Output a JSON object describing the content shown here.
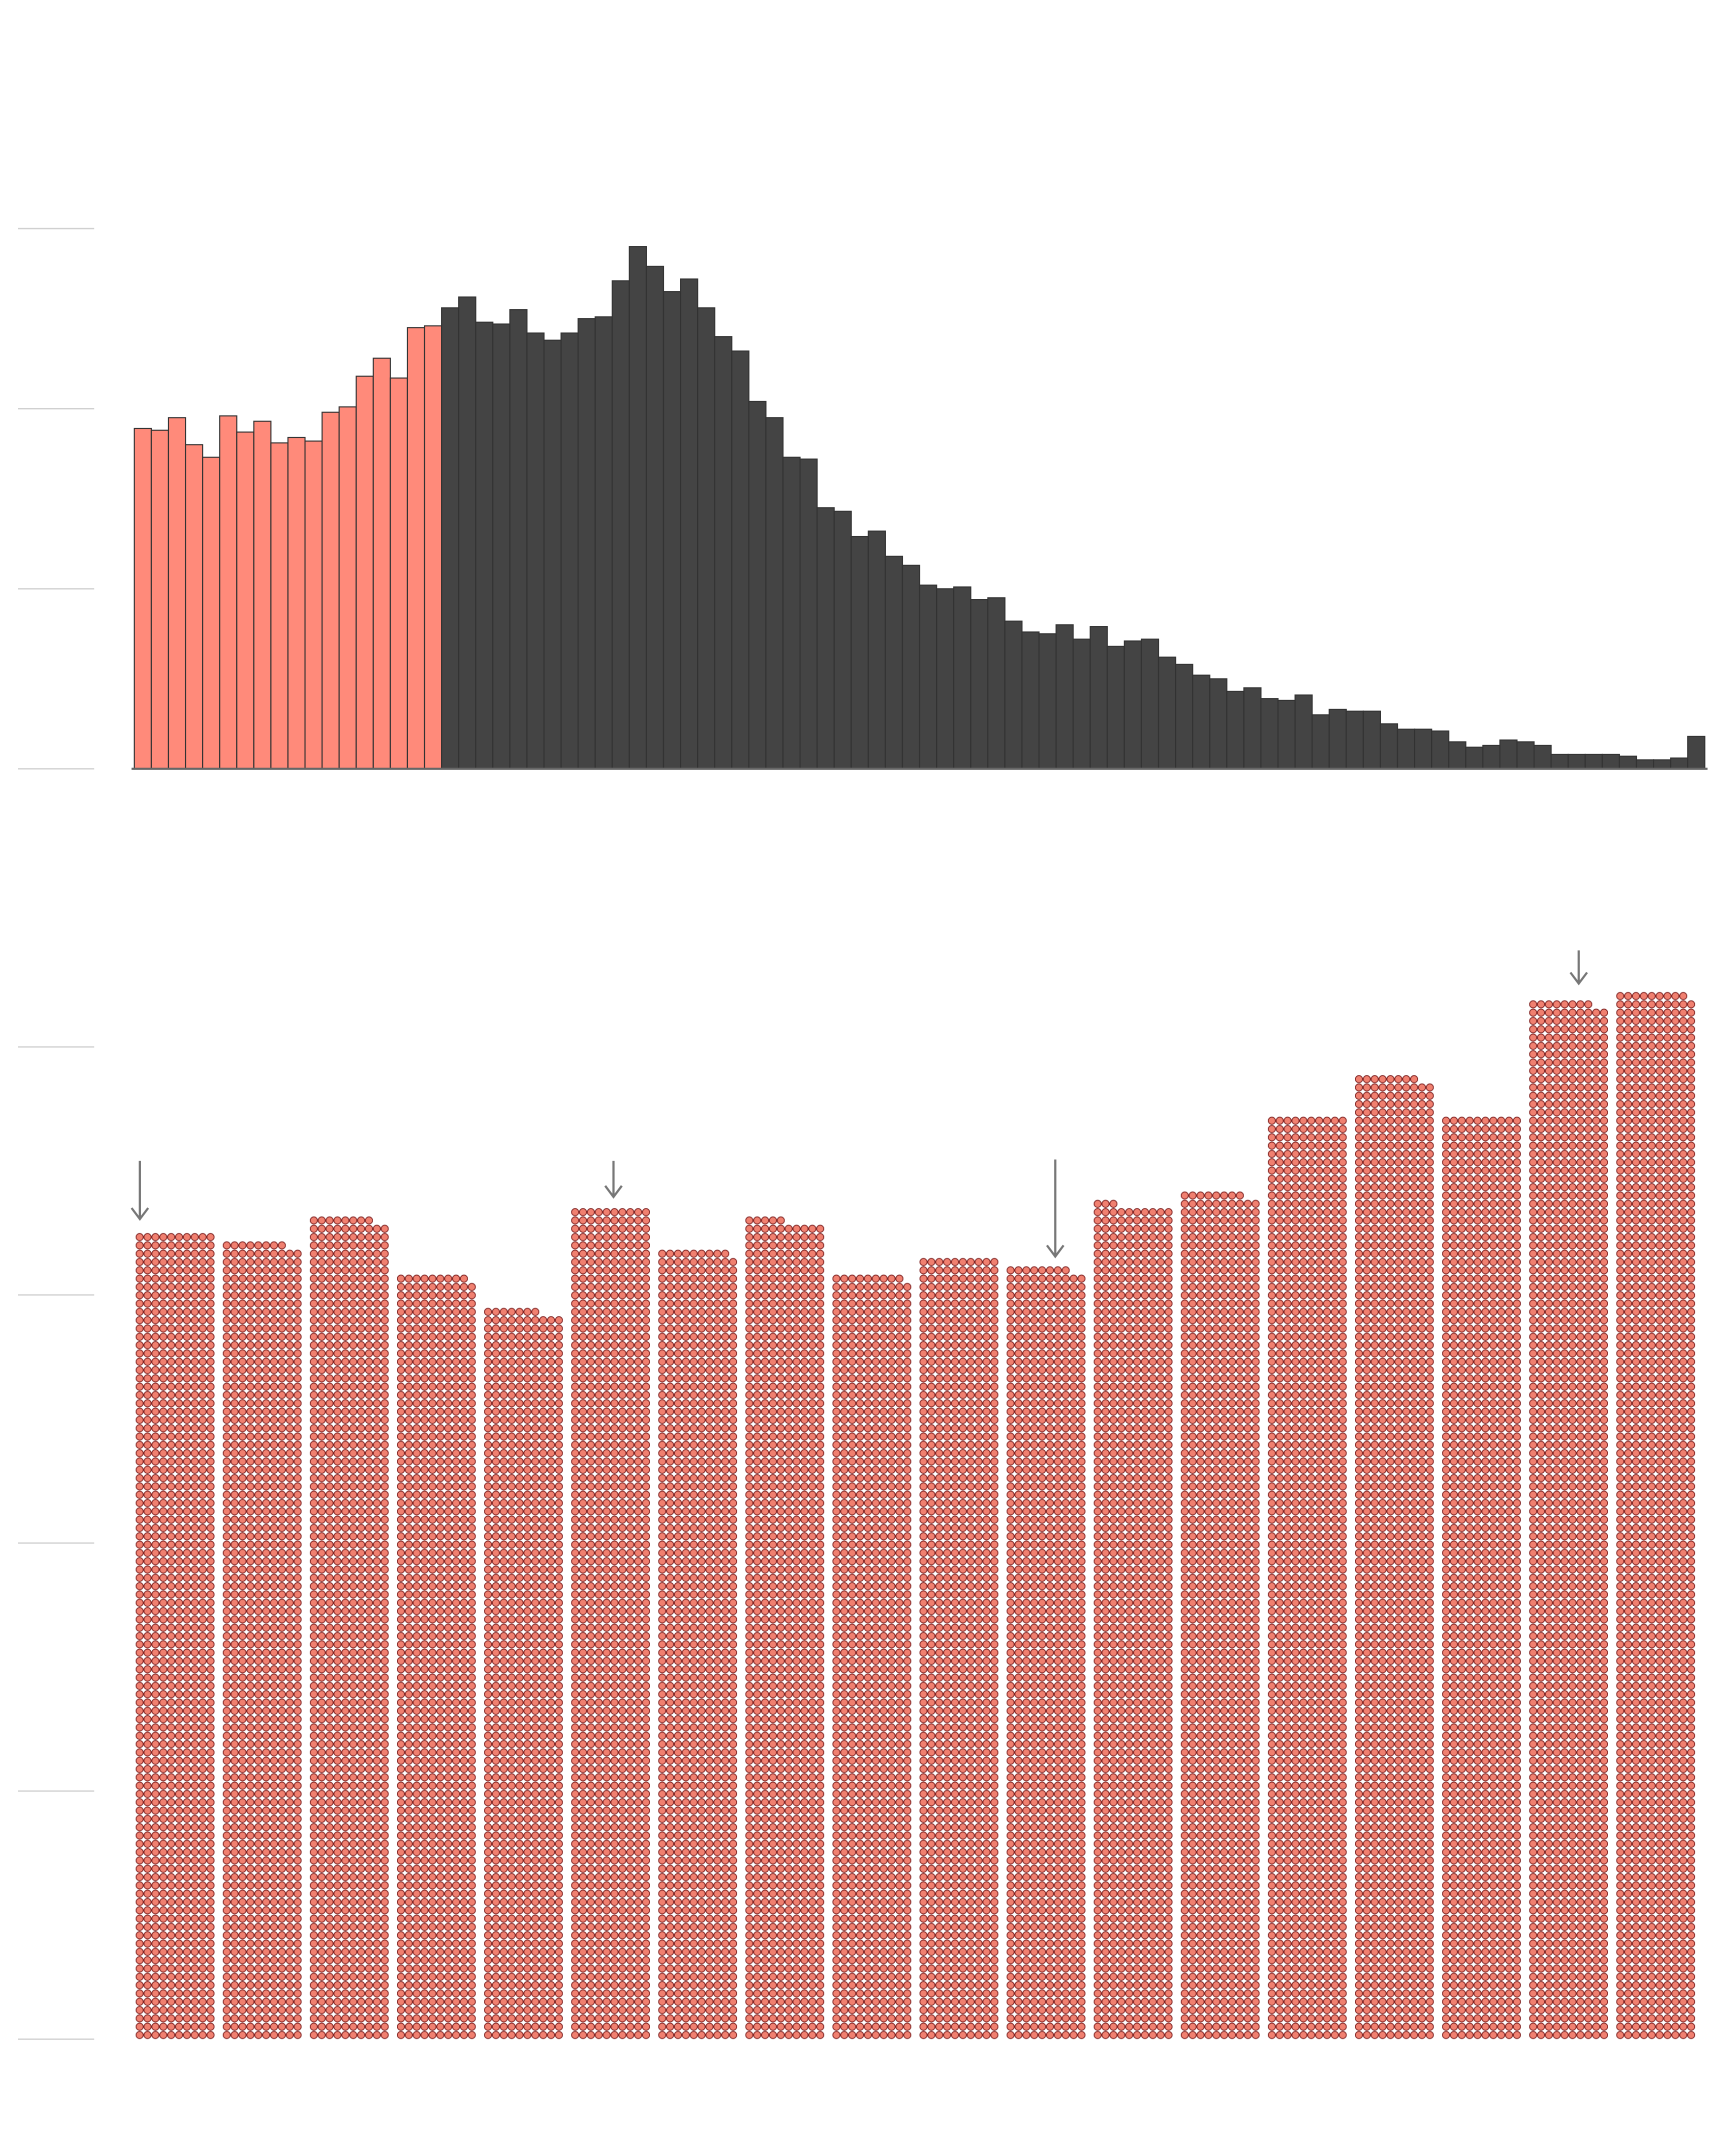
{
  "chart_data": [
    {
      "type": "bar",
      "series": [
        {
          "color": "#ff8a7a",
          "values": [
            189,
            188,
            195,
            180,
            173,
            196,
            187,
            193,
            181,
            184,
            182,
            198,
            201,
            218,
            228,
            217,
            245,
            246
          ]
        },
        {
          "color": "#444444",
          "values": [
            256,
            262,
            248,
            247,
            255,
            242,
            238,
            242,
            250,
            251,
            271,
            290,
            279,
            265,
            272,
            256,
            240,
            232,
            204,
            195,
            173,
            172,
            145,
            143,
            129,
            132,
            118,
            113,
            102,
            100,
            101,
            94,
            95,
            82,
            76,
            75,
            80,
            72,
            79,
            68,
            71,
            72,
            62,
            58,
            52,
            50,
            43,
            45,
            39,
            38,
            41,
            30,
            33,
            32,
            32,
            25,
            22,
            22,
            21,
            15,
            12,
            13,
            16,
            15,
            13,
            8,
            8,
            8,
            8,
            7,
            5,
            5,
            6,
            18
          ]
        }
      ],
      "ylim": [
        0,
        300
      ],
      "yticks": [
        0,
        100,
        200,
        300
      ],
      "grid": true
    },
    {
      "type": "dotbar",
      "categories": [
        null,
        null,
        null,
        null,
        null,
        null,
        null,
        null,
        null,
        null,
        null,
        null,
        null,
        null,
        null,
        null,
        null,
        null
      ],
      "values": [
        325,
        321,
        331,
        308,
        294,
        335,
        318,
        330,
        308,
        315,
        311,
        336,
        341,
        372,
        388,
        372,
        418,
        422
      ],
      "color": "#f08070",
      "ylim": [
        0,
        430
      ],
      "yticks": [
        0,
        100,
        200,
        300,
        400
      ],
      "grid": true
    }
  ]
}
